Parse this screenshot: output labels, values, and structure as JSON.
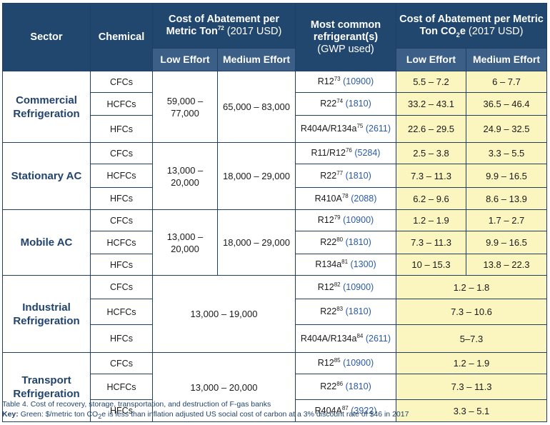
{
  "header": {
    "sector": "Sector",
    "chemical": "Chemical",
    "cost_metric_ton": "Cost of Abatement per Metric Ton",
    "cost_metric_ton_sup": "72",
    "cost_metric_ton_unit": "(2017 USD)",
    "refrigerant": "Most common refrigerant(s)",
    "refrigerant_sub": "(GWP used)",
    "cost_co2e_prefix": "Cost of Abatement per Metric Ton CO",
    "cost_co2e_sub": "2",
    "cost_co2e_suffix": "e",
    "cost_co2e_unit": "(2017 USD)",
    "low_effort": "Low Effort",
    "medium_effort": "Medium Effort"
  },
  "rows": [
    {
      "sector": "Commercial Refrigeration",
      "chemical": "CFCs",
      "low": "59,000 – 77,000",
      "medium": "65,000 – 83,000",
      "refrigerant": "R12",
      "ref_sup": "73",
      "gwp": "(10900)",
      "co2e_low": "5.5 – 7.2",
      "co2e_medium": "6 – 7.7"
    },
    {
      "chemical": "HCFCs",
      "refrigerant": "R22",
      "ref_sup": "74",
      "gwp": "(1810)",
      "co2e_low": "33.2 – 43.1",
      "co2e_medium": "36.5 – 46.4"
    },
    {
      "chemical": "HFCs",
      "refrigerant": "R404A/R134a",
      "ref_sup": "75",
      "gwp": "(2611)",
      "co2e_low": "22.6 – 29.5",
      "co2e_medium": "24.9 – 32.5"
    },
    {
      "sector": "Stationary AC",
      "chemical": "CFCs",
      "low": "13,000 – 20,000",
      "medium": "18,000 – 29,000",
      "refrigerant": "R11/R12",
      "ref_sup": "76",
      "gwp": "(5284)",
      "co2e_low": "2.5 – 3.8",
      "co2e_medium": "3.3 – 5.5"
    },
    {
      "chemical": "HCFCs",
      "refrigerant": "R22",
      "ref_sup": "77",
      "gwp": "(1810)",
      "co2e_low": "7.3 – 11.3",
      "co2e_medium": "9.9 – 16.5"
    },
    {
      "chemical": "HFCs",
      "refrigerant": "R410A",
      "ref_sup": "78",
      "gwp": "(2088)",
      "co2e_low": "6.2 – 9.6",
      "co2e_medium": "8.6 – 13.9"
    },
    {
      "sector": "Mobile AC",
      "chemical": "CFCs",
      "low": "13,000 – 20,000",
      "medium": "18,000 – 29,000",
      "refrigerant": "R12",
      "ref_sup": "79",
      "gwp": "(10900)",
      "co2e_low": "1.2 – 1.9",
      "co2e_medium": "1.7 – 2.7"
    },
    {
      "chemical": "HCFCs",
      "refrigerant": "R22",
      "ref_sup": "80",
      "gwp": "(1810)",
      "co2e_low": "7.3 – 11.3",
      "co2e_medium": "9.9 – 16.5"
    },
    {
      "chemical": "HFCs",
      "refrigerant": "R134a",
      "ref_sup": "81",
      "gwp": "(1300)",
      "co2e_low": "10 – 15.3",
      "co2e_medium": "13.8 – 22.3"
    },
    {
      "sector": "Industrial Refrigeration",
      "chemical": "CFCs",
      "cost_combined": "13,000 – 19,000",
      "refrigerant": "R12",
      "ref_sup": "82",
      "gwp": "(10900)",
      "co2e_combined": "1.2 – 1.8"
    },
    {
      "chemical": "HCFCs",
      "refrigerant": "R22",
      "ref_sup": "83",
      "gwp": "(1810)",
      "co2e_combined": "7.3 – 10.6"
    },
    {
      "chemical": "HFCs",
      "refrigerant": "R404A/R134a",
      "ref_sup": "84",
      "gwp": "(2611)",
      "co2e_combined": "5–7.3"
    },
    {
      "sector": "Transport Refrigeration",
      "chemical": "CFCs",
      "cost_combined": "13,000 – 20,000",
      "refrigerant": "R12",
      "ref_sup": "85",
      "gwp": "(10900)",
      "co2e_combined": "1.2 – 1.9"
    },
    {
      "chemical": "HCFCs",
      "refrigerant": "R22",
      "ref_sup": "86",
      "gwp": "(1810)",
      "co2e_combined": "7.3 – 11.3"
    },
    {
      "chemical": "HFCs",
      "refrigerant": "R404A",
      "ref_sup": "87",
      "gwp": "(3922)",
      "co2e_combined": "3.3 – 5.1"
    }
  ],
  "caption": {
    "title": "Table 4. Cost of recovery, storage, transportation, and destruction of F-gas banks",
    "key_label": "Key:",
    "key_text_prefix": "Green: $/metric ton CO",
    "key_text_sub": "2",
    "key_text_suffix": "e is less than inflation adjusted US social cost of carbon at a 3% discount rate of $46 in 2017"
  },
  "colors": {
    "header_bg": "#21476f",
    "subheader_bg": "#3b5f86",
    "value_bg": "#fbf5bf",
    "sector_text": "#22446c",
    "gwp_text": "#2a5aa8"
  }
}
